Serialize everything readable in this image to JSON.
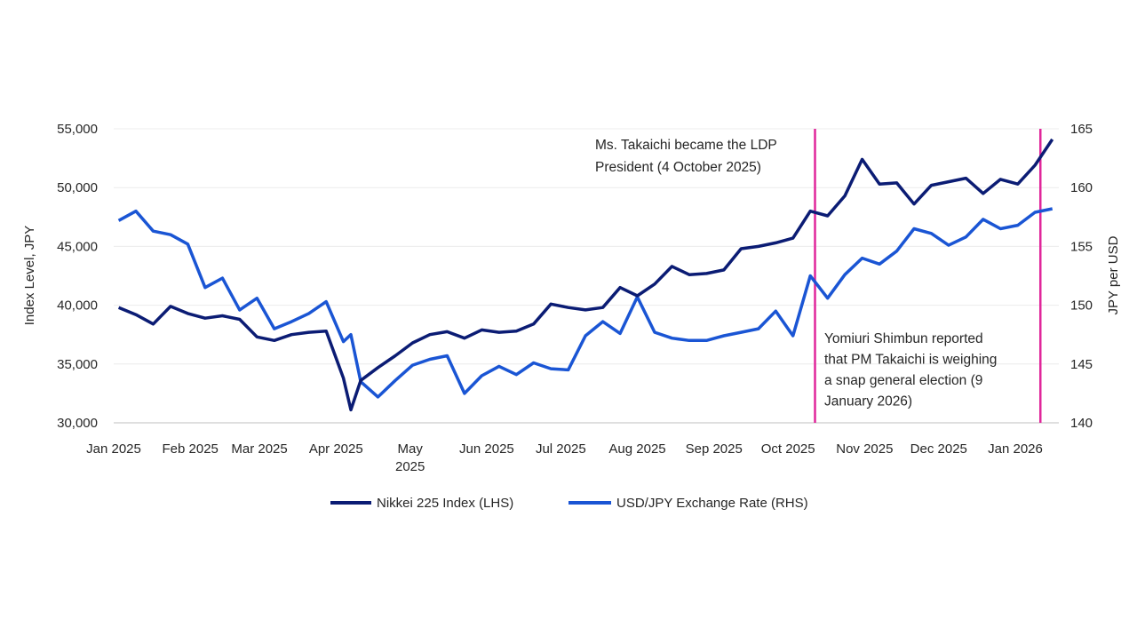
{
  "chart_data": {
    "type": "line",
    "title": "",
    "ylabel_left": "Index Level, JPY",
    "ylabel_right": "JPY per USD",
    "ylim_left": [
      30000,
      55000
    ],
    "ylim_right": [
      140,
      165
    ],
    "yticks_left": [
      "30,000",
      "35,000",
      "40,000",
      "45,000",
      "50,000",
      "55,000"
    ],
    "yticks_right": [
      "140",
      "145",
      "150",
      "155",
      "160",
      "165"
    ],
    "xticks": [
      {
        "date": "2025-01-01",
        "label": "Jan 2025"
      },
      {
        "date": "2025-02-01",
        "label": "Feb 2025"
      },
      {
        "date": "2025-03-01",
        "label": "Mar 2025"
      },
      {
        "date": "2025-04-01",
        "label": "Apr 2025"
      },
      {
        "date": "2025-05-01",
        "label": "May 2025"
      },
      {
        "date": "2025-06-01",
        "label": "Jun 2025"
      },
      {
        "date": "2025-07-01",
        "label": "Jul 2025"
      },
      {
        "date": "2025-08-01",
        "label": "Aug 2025"
      },
      {
        "date": "2025-09-01",
        "label": "Sep 2025"
      },
      {
        "date": "2025-10-01",
        "label": "Oct 2025"
      },
      {
        "date": "2025-11-01",
        "label": "Nov 2025"
      },
      {
        "date": "2025-12-01",
        "label": "Dec 2025"
      },
      {
        "date": "2026-01-01",
        "label": "Jan 2026"
      }
    ],
    "grid": true,
    "legend_placement": "bottom",
    "x": [
      "2025-01-03",
      "2025-01-10",
      "2025-01-17",
      "2025-01-24",
      "2025-01-31",
      "2025-02-07",
      "2025-02-14",
      "2025-02-21",
      "2025-02-28",
      "2025-03-07",
      "2025-03-14",
      "2025-03-21",
      "2025-03-28",
      "2025-04-04",
      "2025-04-07",
      "2025-04-11",
      "2025-04-18",
      "2025-04-25",
      "2025-05-02",
      "2025-05-09",
      "2025-05-16",
      "2025-05-23",
      "2025-05-30",
      "2025-06-06",
      "2025-06-13",
      "2025-06-20",
      "2025-06-27",
      "2025-07-04",
      "2025-07-11",
      "2025-07-18",
      "2025-07-25",
      "2025-08-01",
      "2025-08-08",
      "2025-08-15",
      "2025-08-22",
      "2025-08-29",
      "2025-09-05",
      "2025-09-12",
      "2025-09-19",
      "2025-09-26",
      "2025-10-03",
      "2025-10-10",
      "2025-10-17",
      "2025-10-24",
      "2025-10-31",
      "2025-11-07",
      "2025-11-14",
      "2025-11-21",
      "2025-11-28",
      "2025-12-05",
      "2025-12-12",
      "2025-12-19",
      "2025-12-26",
      "2026-01-02",
      "2026-01-09",
      "2026-01-16"
    ],
    "series": [
      {
        "name": "Nikkei 225 Index (LHS)",
        "axis": "left",
        "color": "#0b1c74",
        "values": [
          39800,
          39200,
          38400,
          39900,
          39300,
          38900,
          39100,
          38800,
          37300,
          37000,
          37500,
          37700,
          37800,
          33800,
          31100,
          33600,
          34700,
          35700,
          36800,
          37500,
          37750,
          37200,
          37900,
          37700,
          37800,
          38400,
          40100,
          39800,
          39600,
          39800,
          41500,
          40800,
          41800,
          43300,
          42600,
          42700,
          43000,
          44800,
          45000,
          45300,
          45700,
          48000,
          47600,
          49300,
          52400,
          50300,
          50400,
          48600,
          50200,
          50500,
          50800,
          49500,
          50700,
          50300,
          51900,
          54100
        ]
      },
      {
        "name": "USD/JPY Exchange Rate (RHS)",
        "axis": "right",
        "color": "#1a55d4",
        "values": [
          157.2,
          158.0,
          156.3,
          156.0,
          155.2,
          151.5,
          152.3,
          149.6,
          150.6,
          148.0,
          148.6,
          149.3,
          150.3,
          146.9,
          147.5,
          143.5,
          142.2,
          143.6,
          144.9,
          145.4,
          145.7,
          142.5,
          144.0,
          144.8,
          144.1,
          145.1,
          144.6,
          144.5,
          147.4,
          148.6,
          147.6,
          150.7,
          147.7,
          147.2,
          147.0,
          147.0,
          147.4,
          147.7,
          148.0,
          149.5,
          147.4,
          152.5,
          150.6,
          152.6,
          154.0,
          153.5,
          154.6,
          156.5,
          156.1,
          155.1,
          155.8,
          157.3,
          156.5,
          156.8,
          157.9,
          158.2
        ]
      }
    ],
    "annotations": [
      {
        "date": "2025-10-04",
        "color": "#e0269b",
        "lines": [
          "Ms. Takaichi became the LDP",
          "President (4 October 2025)"
        ]
      },
      {
        "date": "2026-01-09",
        "color": "#e0269b",
        "lines": [
          "Yomiuri Shimbun reported",
          "that PM Takaichi is weighing",
          " a snap general election (9",
          "January 2026)"
        ]
      }
    ]
  }
}
